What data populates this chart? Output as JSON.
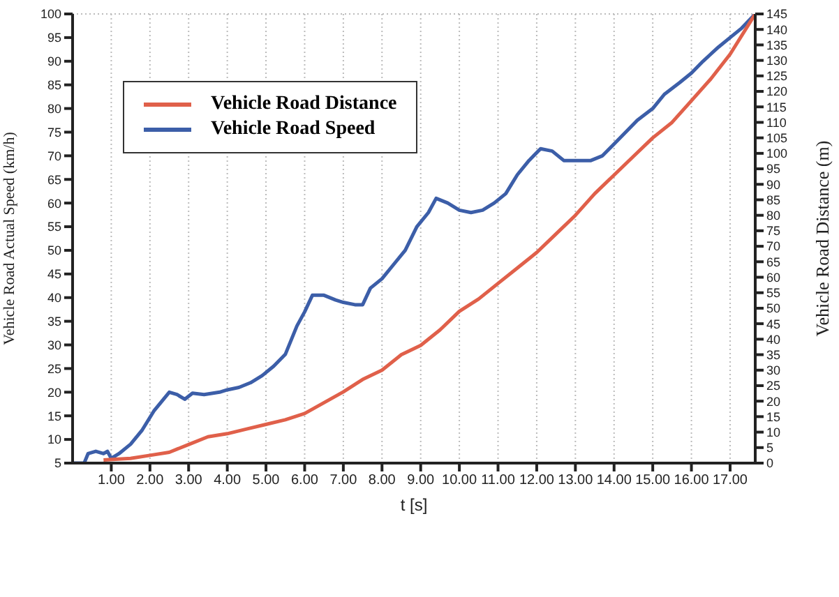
{
  "chart_data": {
    "type": "line",
    "xlabel": "t [s]",
    "ylabel": "Vehicle Road Actual Speed (km/h)",
    "y2label": "Vehicle Road Distance (m)",
    "xlim": [
      0,
      17.65
    ],
    "xticks": [
      {
        "value": 1,
        "label": "1.00"
      },
      {
        "value": 2,
        "label": "2.00"
      },
      {
        "value": 3,
        "label": "3.00"
      },
      {
        "value": 4,
        "label": "4.00"
      },
      {
        "value": 5,
        "label": "5.00"
      },
      {
        "value": 6,
        "label": "6.00"
      },
      {
        "value": 7,
        "label": "7.00"
      },
      {
        "value": 8,
        "label": "8.00"
      },
      {
        "value": 9,
        "label": "9.00"
      },
      {
        "value": 10,
        "label": "10.00"
      },
      {
        "value": 11,
        "label": "11.00"
      },
      {
        "value": 12,
        "label": "12.00"
      },
      {
        "value": 13,
        "label": "13.00"
      },
      {
        "value": 14,
        "label": "14.00"
      },
      {
        "value": 15,
        "label": "15.00"
      },
      {
        "value": 16,
        "label": "16.00"
      },
      {
        "value": 17,
        "label": "17.00"
      }
    ],
    "ylim": [
      5,
      100
    ],
    "yticks": [
      5,
      10,
      15,
      20,
      25,
      30,
      35,
      40,
      45,
      50,
      55,
      60,
      65,
      70,
      75,
      80,
      85,
      90,
      95,
      100
    ],
    "y2lim": [
      0,
      145
    ],
    "y2ticks": [
      0,
      5,
      10,
      15,
      20,
      25,
      30,
      35,
      40,
      45,
      50,
      55,
      60,
      65,
      70,
      75,
      80,
      85,
      90,
      95,
      100,
      105,
      110,
      115,
      120,
      125,
      130,
      135,
      140,
      145
    ],
    "grid": true,
    "legend": "top left",
    "marker": "none",
    "line_style": "solid",
    "series": [
      {
        "name": "Vehicle Road Speed",
        "color": "#3c5ea8",
        "x": [
          0,
          0.3,
          0.4,
          0.6,
          0.8,
          0.9,
          1.0,
          1.2,
          1.5,
          1.8,
          2.1,
          2.3,
          2.5,
          2.7,
          2.9,
          3.1,
          3.4,
          3.8,
          4.0,
          4.3,
          4.6,
          4.9,
          5.2,
          5.5,
          5.8,
          6.0,
          6.2,
          6.5,
          6.8,
          7.0,
          7.3,
          7.5,
          7.7,
          8.0,
          8.3,
          8.6,
          8.9,
          9.2,
          9.4,
          9.7,
          10.0,
          10.3,
          10.6,
          10.9,
          11.2,
          11.5,
          11.8,
          12.1,
          12.4,
          12.7,
          13.0,
          13.4,
          13.7,
          14.0,
          14.3,
          14.6,
          15.0,
          15.3,
          15.7,
          16.0,
          16.3,
          16.7,
          17.0,
          17.3,
          17.65
        ],
        "values": [
          5,
          5,
          7,
          7.5,
          7,
          7.5,
          6,
          7,
          9,
          12,
          16,
          18,
          20,
          19.5,
          18.5,
          19.8,
          19.5,
          20,
          20.5,
          21,
          22,
          23.5,
          25.5,
          28,
          34,
          37,
          40.5,
          40.5,
          39.5,
          39,
          38.5,
          38.5,
          42,
          44,
          47,
          50,
          55,
          58,
          61,
          60,
          58.5,
          58,
          58.5,
          60,
          62,
          66,
          69,
          71.5,
          71,
          69,
          69,
          69,
          70,
          72.5,
          75,
          77.5,
          80,
          83,
          85.5,
          87.5,
          90,
          93,
          95,
          97,
          100
        ]
      },
      {
        "name": "Vehicle Road Distance",
        "color": "#e0604a",
        "axis": "y2",
        "x": [
          0.8,
          1.5,
          2.0,
          2.5,
          3.0,
          3.5,
          4.0,
          4.5,
          5.0,
          5.5,
          6.0,
          6.5,
          7.0,
          7.5,
          8.0,
          8.5,
          9.0,
          9.5,
          10.0,
          10.5,
          11.0,
          11.5,
          12.0,
          12.5,
          13.0,
          13.5,
          14.0,
          14.5,
          15.0,
          15.5,
          16.0,
          16.5,
          17.0,
          17.65
        ],
        "values": [
          1,
          1.5,
          2.5,
          3.5,
          6,
          8.5,
          9.5,
          11,
          12.5,
          14,
          16,
          19.5,
          23,
          27,
          30,
          35,
          38,
          43,
          49,
          53,
          58,
          63,
          68,
          74,
          80,
          87,
          93,
          99,
          105,
          110,
          117,
          124,
          132,
          145
        ]
      }
    ]
  }
}
